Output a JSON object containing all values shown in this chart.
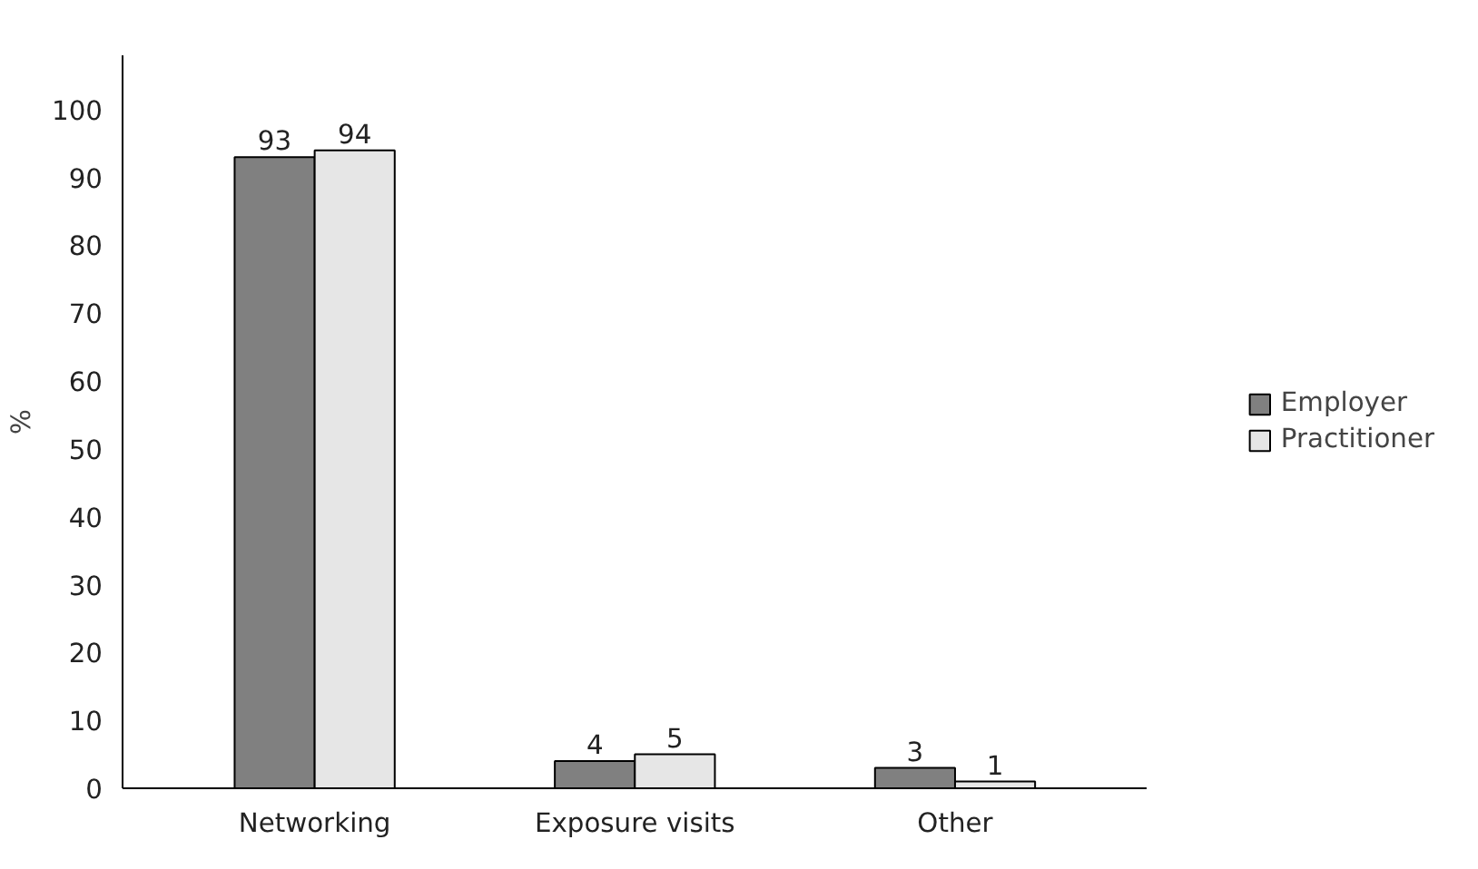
{
  "chart_data": {
    "type": "bar",
    "ylabel": "%",
    "categories": [
      "Networking",
      "Exposure visits",
      "Other"
    ],
    "series": [
      {
        "name": "Employer",
        "color": "#808080",
        "values": [
          93,
          4,
          3
        ]
      },
      {
        "name": "Practitioner",
        "color": "#e6e6e6",
        "values": [
          94,
          5,
          1
        ]
      }
    ],
    "ylim": [
      0,
      108
    ],
    "yticks": [
      0,
      10,
      20,
      30,
      40,
      50,
      60,
      70,
      80,
      90,
      100
    ],
    "data_labels": true,
    "grid": false,
    "legend": "right"
  }
}
